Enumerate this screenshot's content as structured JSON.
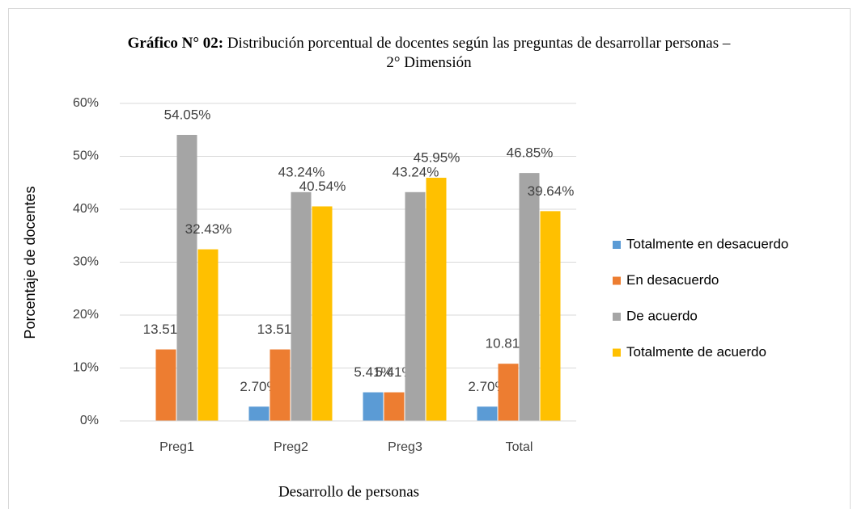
{
  "chart_data": {
    "type": "bar",
    "title_label": "Gráfico N° 02:",
    "title": "Distribución porcentual de docentes según las preguntas de desarrollar personas – 2° Dimensión",
    "y_label": "Porcentaje de docentes",
    "x_label": "Desarrollo de personas",
    "categories": [
      "Preg1",
      "Preg2",
      "Preg3",
      "Total"
    ],
    "series": [
      {
        "name": "Totalmente en desacuerdo",
        "color": "#5b9bd5",
        "values": [
          0,
          2.7,
          5.41,
          2.7
        ],
        "value_labels": [
          null,
          "2.70%",
          "5.41%",
          "2.70%"
        ]
      },
      {
        "name": "En desacuerdo",
        "color": "#ed7d31",
        "values": [
          13.51,
          13.51,
          5.41,
          10.81
        ],
        "value_labels": [
          "13.51%",
          "13.51%",
          "5.41%",
          "10.81%"
        ]
      },
      {
        "name": "De acuerdo",
        "color": "#a5a5a5",
        "values": [
          54.05,
          43.24,
          43.24,
          46.85
        ],
        "value_labels": [
          "54.05%",
          "43.24%",
          "43.24%",
          "46.85%"
        ]
      },
      {
        "name": "Totalmente de acuerdo",
        "color": "#ffc000",
        "values": [
          32.43,
          40.54,
          45.95,
          39.64
        ],
        "value_labels": [
          "32.43%",
          "40.54%",
          "45.95%",
          "39.64%"
        ]
      }
    ],
    "ylim": [
      0,
      60
    ],
    "yticks": [
      {
        "value": 0,
        "label": "0%"
      },
      {
        "value": 10,
        "label": "10%"
      },
      {
        "value": 20,
        "label": "20%"
      },
      {
        "value": 30,
        "label": "30%"
      },
      {
        "value": 40,
        "label": "40%"
      },
      {
        "value": 50,
        "label": "50%"
      },
      {
        "value": 60,
        "label": "60%"
      }
    ],
    "grid": true,
    "legend": "right"
  }
}
